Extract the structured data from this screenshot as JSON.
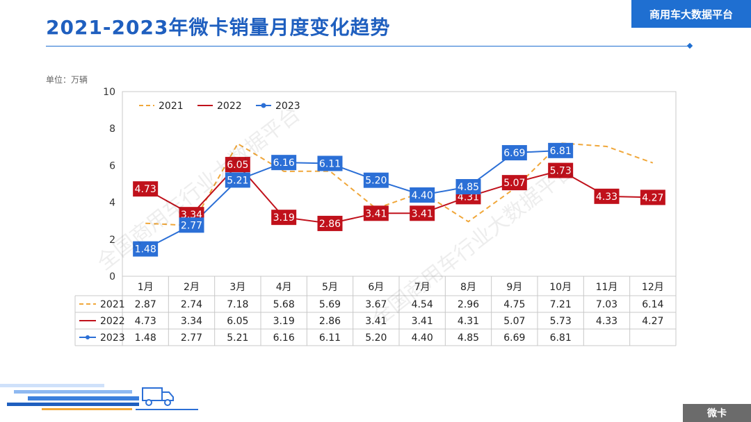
{
  "page": {
    "title": "2021-2023年微卡销量月度变化趋势",
    "brand": "商用车大数据平台",
    "unit": "单位：万辆",
    "footer_tag": "微卡",
    "watermark": "全国商用车行业大数据平台"
  },
  "colors": {
    "accent": "#1f6fd1",
    "s2021": "#f0a73a",
    "s2022": "#c0111b",
    "s2023": "#2b6fd6"
  },
  "chart_data": {
    "type": "line",
    "categories": [
      "1月",
      "2月",
      "3月",
      "4月",
      "5月",
      "6月",
      "7月",
      "8月",
      "9月",
      "10月",
      "11月",
      "12月"
    ],
    "ylim": [
      0,
      10
    ],
    "yticks": [
      0,
      2,
      4,
      6,
      8,
      10
    ],
    "legend_position": "top-left",
    "grid": false,
    "series": [
      {
        "name": "2021",
        "style": "dashed",
        "color": "#f0a73a",
        "values": [
          2.87,
          2.74,
          7.18,
          5.68,
          5.69,
          3.67,
          4.54,
          2.96,
          4.75,
          7.21,
          7.03,
          6.14
        ],
        "labeled": false
      },
      {
        "name": "2022",
        "style": "solid",
        "color": "#c0111b",
        "values": [
          4.73,
          3.34,
          6.05,
          3.19,
          2.86,
          3.41,
          3.41,
          4.31,
          5.07,
          5.73,
          4.33,
          4.27
        ],
        "labeled": true
      },
      {
        "name": "2023",
        "style": "solid-marker",
        "color": "#2b6fd6",
        "values": [
          1.48,
          2.77,
          5.21,
          6.16,
          6.11,
          5.2,
          4.4,
          4.85,
          6.69,
          6.81,
          null,
          null
        ],
        "labeled": true
      }
    ],
    "table": {
      "rows": [
        {
          "label": "2021",
          "cells": [
            "2.87",
            "2.74",
            "7.18",
            "5.68",
            "5.69",
            "3.67",
            "4.54",
            "2.96",
            "4.75",
            "7.21",
            "7.03",
            "6.14"
          ]
        },
        {
          "label": "2022",
          "cells": [
            "4.73",
            "3.34",
            "6.05",
            "3.19",
            "2.86",
            "3.41",
            "3.41",
            "4.31",
            "5.07",
            "5.73",
            "4.33",
            "4.27"
          ]
        },
        {
          "label": "2023",
          "cells": [
            "1.48",
            "2.77",
            "5.21",
            "6.16",
            "6.11",
            "5.20",
            "4.40",
            "4.85",
            "6.69",
            "6.81",
            "",
            ""
          ]
        }
      ]
    }
  }
}
